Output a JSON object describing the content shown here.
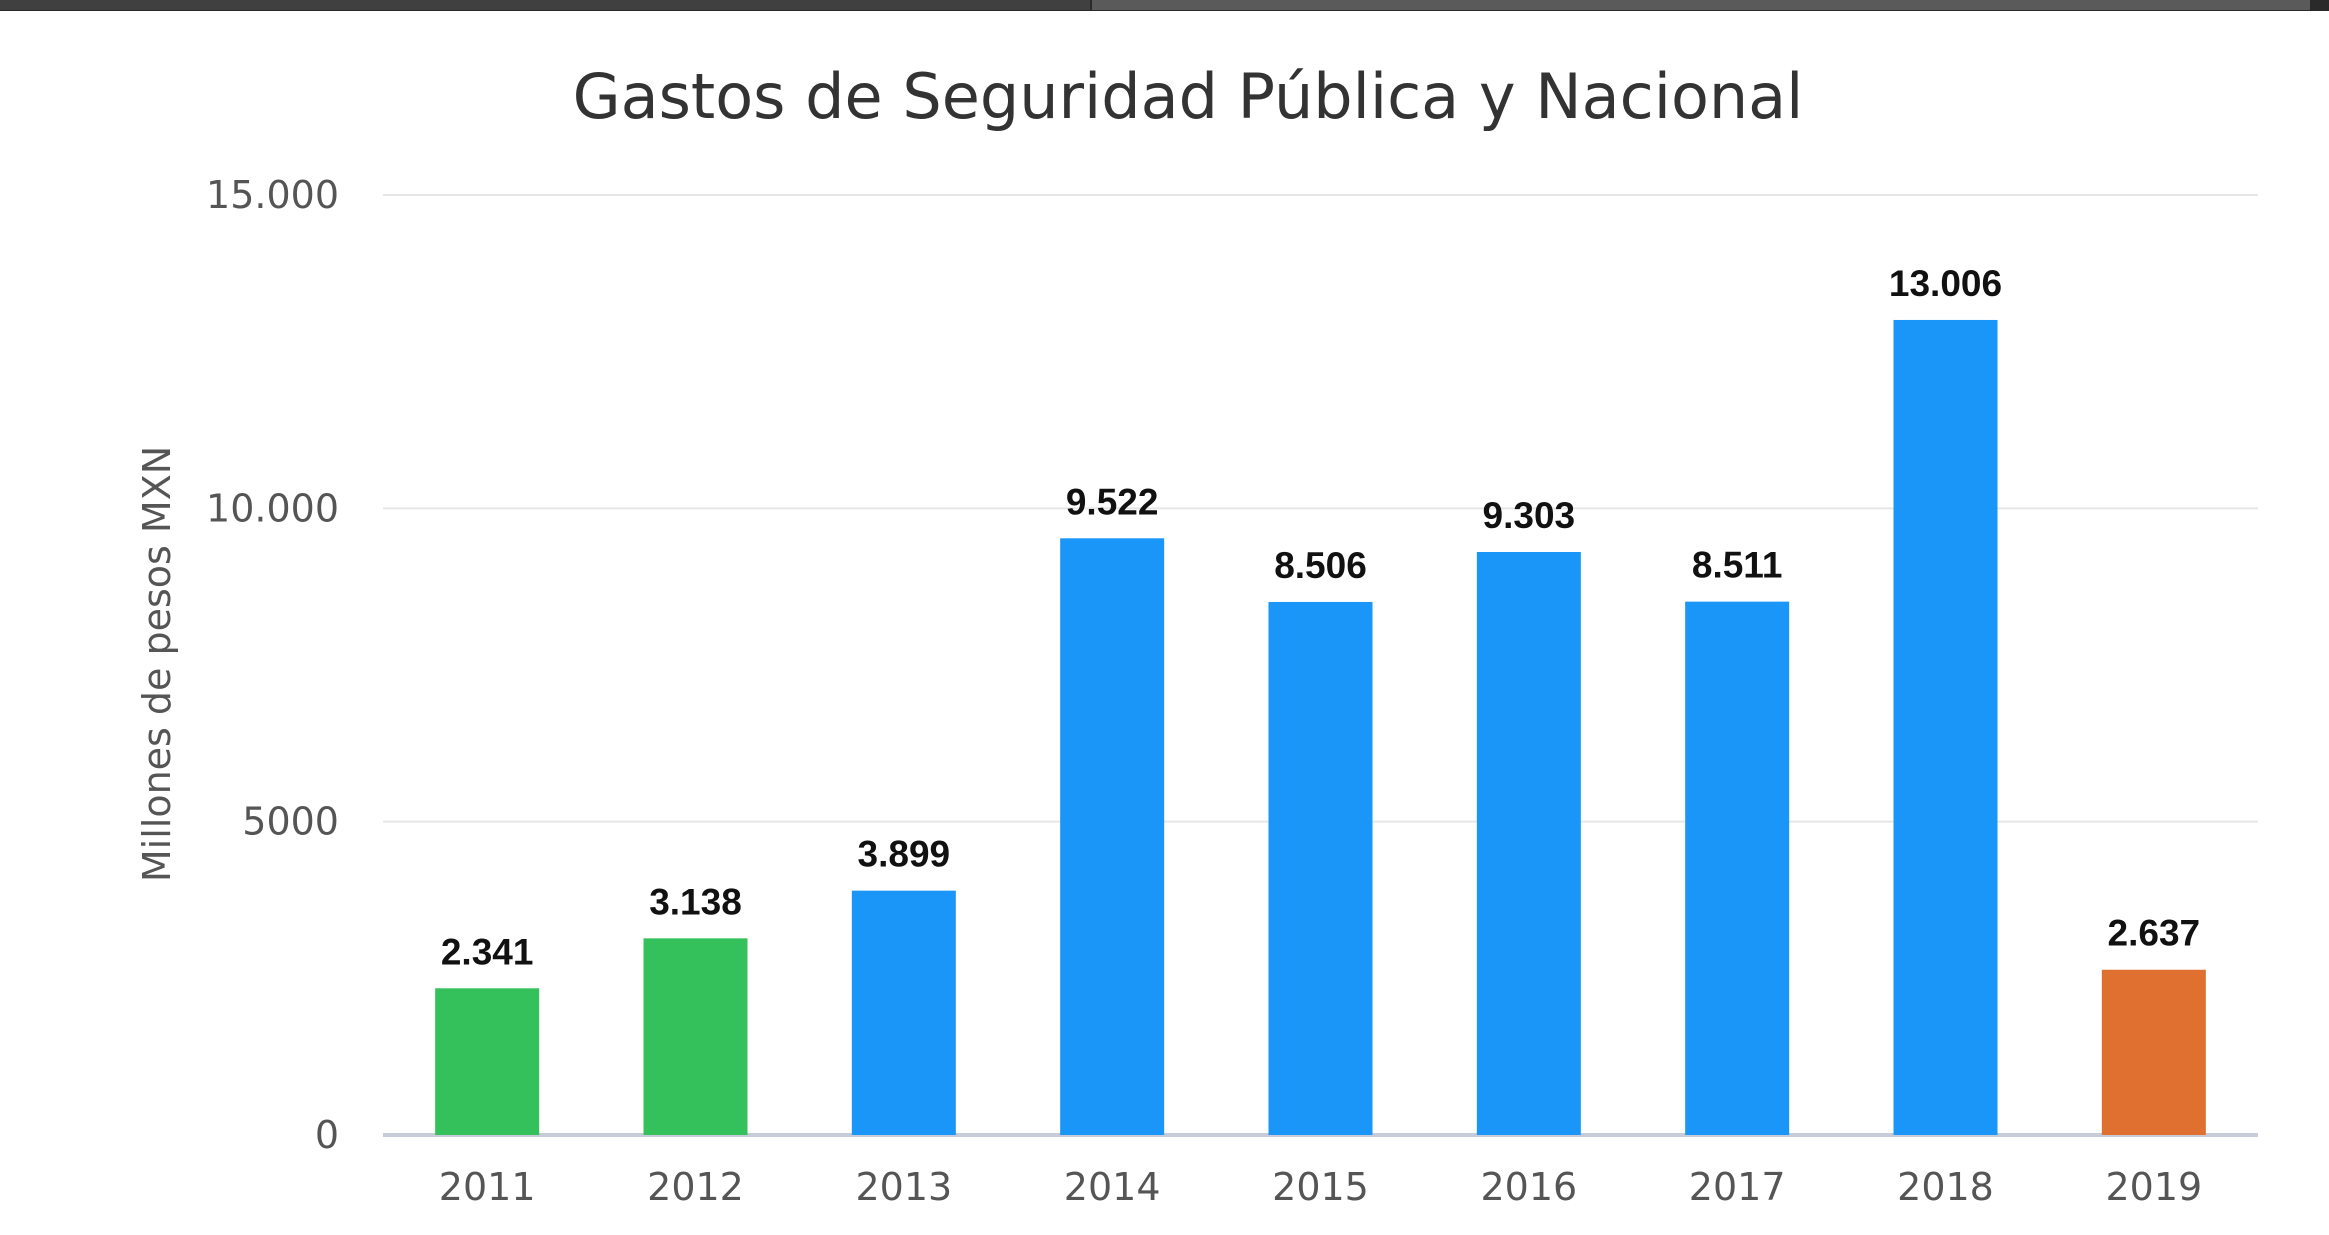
{
  "chart_data": {
    "type": "bar",
    "title": "Gastos de Seguridad Pública y Nacional",
    "xlabel": "",
    "ylabel": "Millones de pesos MXN",
    "ylim": [
      0,
      15000
    ],
    "yticks": [
      0,
      5000,
      10000,
      15000
    ],
    "ytick_labels": [
      "0",
      "5000",
      "10.000",
      "15.000"
    ],
    "grid": true,
    "categories": [
      "2011",
      "2012",
      "2013",
      "2014",
      "2015",
      "2016",
      "2017",
      "2018",
      "2019"
    ],
    "values": [
      2341,
      3138,
      3899,
      9522,
      8506,
      9303,
      8511,
      13006,
      2637
    ],
    "value_labels": [
      "2.341",
      "3.138",
      "3.899",
      "9.522",
      "8.506",
      "9.303",
      "8.511",
      "13.006",
      "2.637"
    ],
    "colors": [
      "#34c05a",
      "#34c05a",
      "#1a96f8",
      "#1a96f8",
      "#1a96f8",
      "#1a96f8",
      "#1a96f8",
      "#1a96f8",
      "#e07030"
    ]
  }
}
